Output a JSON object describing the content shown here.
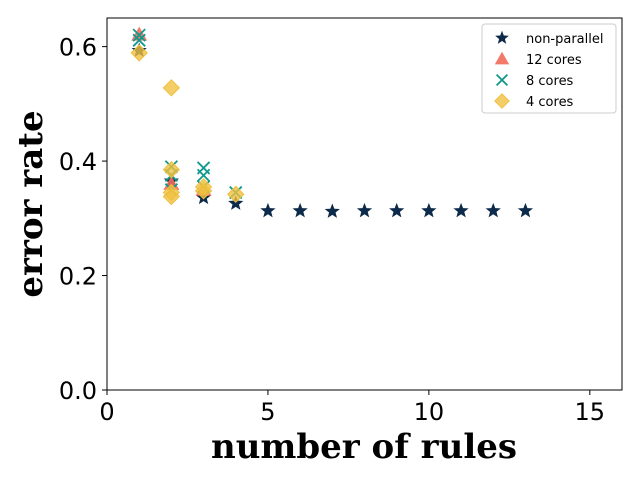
{
  "chart_data": {
    "type": "scatter",
    "xlabel": "number of rules",
    "ylabel": "error rate",
    "xlim": [
      0,
      16
    ],
    "ylim": [
      0,
      0.65
    ],
    "xticks": [
      0,
      5,
      10,
      15
    ],
    "yticks": [
      0.0,
      0.2,
      0.4,
      0.6
    ],
    "xtick_labels": [
      "0",
      "5",
      "10",
      "15"
    ],
    "ytick_labels": [
      "0.0",
      "0.2",
      "0.4",
      "0.6"
    ],
    "grid": false,
    "legend_position": "top-right",
    "series": [
      {
        "name": "non-parallel",
        "marker": "star",
        "color": "#0d2a4a",
        "points": [
          [
            1,
            0.593
          ],
          [
            2,
            0.365
          ],
          [
            3,
            0.336
          ],
          [
            4,
            0.326
          ],
          [
            5,
            0.313
          ],
          [
            6,
            0.313
          ],
          [
            7,
            0.312
          ],
          [
            8,
            0.313
          ],
          [
            9,
            0.313
          ],
          [
            10,
            0.313
          ],
          [
            11,
            0.313
          ],
          [
            12,
            0.313
          ],
          [
            13,
            0.313
          ]
        ]
      },
      {
        "name": "12 cores",
        "marker": "triangle",
        "color": "#f26b5b",
        "points": [
          [
            1,
            0.621
          ],
          [
            2,
            0.36
          ],
          [
            3,
            0.35
          ]
        ]
      },
      {
        "name": "8 cores",
        "marker": "x",
        "color": "#0f9a8c",
        "points": [
          [
            1,
            0.611
          ],
          [
            1,
            0.62
          ],
          [
            2,
            0.39
          ],
          [
            2,
            0.375
          ],
          [
            2,
            0.35
          ],
          [
            3,
            0.388
          ],
          [
            3,
            0.375
          ],
          [
            3,
            0.355
          ],
          [
            4,
            0.345
          ]
        ]
      },
      {
        "name": "4 cores",
        "marker": "diamond",
        "color": "#f0c040",
        "points": [
          [
            1,
            0.589
          ],
          [
            2,
            0.528
          ],
          [
            2,
            0.385
          ],
          [
            2,
            0.345
          ],
          [
            2,
            0.338
          ],
          [
            3,
            0.355
          ],
          [
            3,
            0.348
          ],
          [
            4,
            0.342
          ]
        ]
      }
    ]
  }
}
